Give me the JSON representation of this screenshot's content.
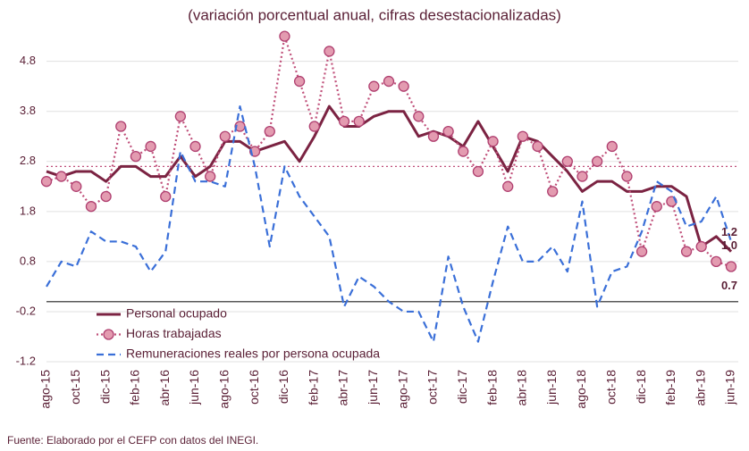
{
  "chart_data": {
    "type": "line",
    "title": "(variación porcentual anual, cifras desestacionalizadas)",
    "source": "Fuente: Elaborado por el CEFP con datos del INEGI.",
    "categories": [
      "ago-15",
      null,
      "oct-15",
      null,
      "dic-15",
      null,
      "feb-16",
      null,
      "abr-16",
      null,
      "jun-16",
      null,
      "ago-16",
      null,
      "oct-16",
      null,
      "dic-16",
      null,
      "feb-17",
      null,
      "abr-17",
      null,
      "jun-17",
      null,
      "ago-17",
      null,
      "oct-17",
      null,
      "dic-17",
      null,
      "feb-18",
      null,
      "abr-18",
      null,
      "jun-18",
      null,
      "ago-18",
      null,
      "oct-18",
      null,
      "dic-18",
      null,
      "feb-19",
      null,
      "abr-19",
      null,
      "jun-19"
    ],
    "ylim": [
      -1.2,
      5.4
    ],
    "yticks": [
      -1.2,
      -0.2,
      0.8,
      1.8,
      2.8,
      3.8,
      4.8
    ],
    "grid": true,
    "legend": "lower-left",
    "reference_lines": [
      {
        "value": 0,
        "color": "#595959",
        "style": "solid"
      },
      {
        "value": 2.7,
        "color": "#c0507a",
        "style": "dotted"
      }
    ],
    "series": [
      {
        "name": "Personal ocupado",
        "color": "#7b2342",
        "style": "solid",
        "marker": false,
        "values": [
          2.6,
          2.5,
          2.6,
          2.6,
          2.4,
          2.7,
          2.7,
          2.5,
          2.5,
          2.9,
          2.5,
          2.7,
          3.2,
          3.2,
          3.0,
          3.1,
          3.2,
          2.8,
          3.3,
          3.9,
          3.5,
          3.5,
          3.7,
          3.8,
          3.8,
          3.3,
          3.4,
          3.3,
          3.1,
          3.6,
          3.1,
          2.6,
          3.3,
          3.2,
          2.9,
          2.6,
          2.2,
          2.4,
          2.4,
          2.2,
          2.2,
          2.3,
          2.3,
          2.1,
          1.1,
          1.3,
          1.0
        ],
        "data_labels": [
          {
            "index": 46,
            "label": "1.0"
          }
        ]
      },
      {
        "name": "Horas trabajadas",
        "color": "#c0507a",
        "style": "dotted",
        "marker": true,
        "values": [
          2.4,
          2.5,
          2.3,
          1.9,
          2.1,
          3.5,
          2.9,
          3.1,
          2.1,
          3.7,
          3.1,
          2.5,
          3.3,
          3.5,
          3.0,
          3.4,
          5.3,
          4.4,
          3.5,
          5.0,
          3.6,
          3.6,
          4.3,
          4.4,
          4.3,
          3.7,
          3.3,
          3.4,
          3.0,
          2.6,
          3.2,
          2.3,
          3.3,
          3.1,
          2.2,
          2.8,
          2.5,
          2.8,
          3.1,
          2.5,
          1.0,
          1.9,
          2.0,
          1.0,
          1.1,
          0.8,
          0.7
        ],
        "data_labels": [
          {
            "index": 46,
            "label": "0.7"
          }
        ]
      },
      {
        "name": "Remuneraciones reales por persona ocupada",
        "color": "#3a6fd8",
        "style": "dashed",
        "marker": false,
        "values": [
          0.3,
          0.8,
          0.7,
          1.4,
          1.2,
          1.2,
          1.1,
          0.6,
          1.0,
          3.0,
          2.4,
          2.4,
          2.3,
          3.9,
          2.7,
          1.1,
          2.7,
          2.1,
          1.7,
          1.3,
          -0.1,
          0.5,
          0.3,
          0.0,
          -0.2,
          -0.2,
          -0.8,
          0.9,
          -0.1,
          -0.8,
          0.4,
          1.5,
          0.8,
          0.8,
          1.1,
          0.6,
          2.0,
          -0.1,
          0.6,
          0.7,
          1.4,
          2.4,
          2.2,
          1.5,
          1.6,
          2.1,
          1.2
        ],
        "data_labels": [
          {
            "index": 46,
            "label": "1.2"
          }
        ]
      }
    ]
  }
}
